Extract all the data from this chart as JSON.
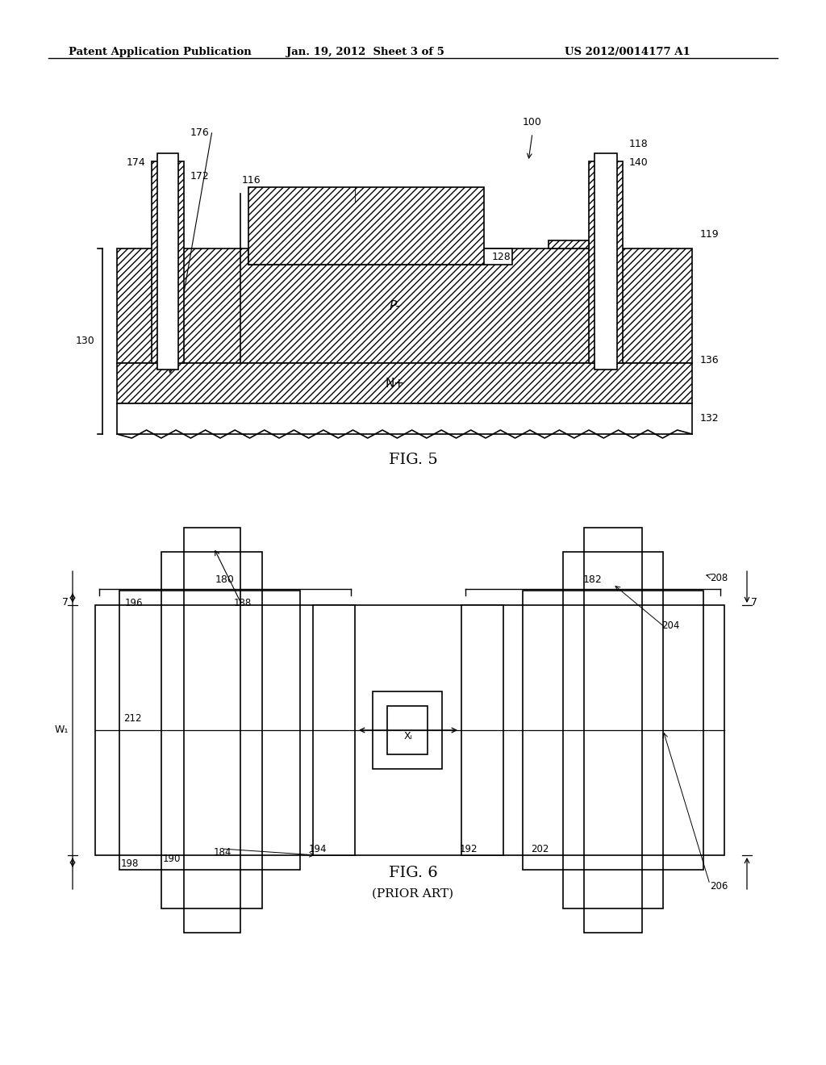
{
  "bg_color": "#ffffff",
  "header_text": "Patent Application Publication",
  "header_date": "Jan. 19, 2012  Sheet 3 of 5",
  "header_patent": "US 2012/0014177 A1",
  "fig5_label": "FIG. 5",
  "fig6_label": "FIG. 6",
  "fig6_sublabel": "(PRIOR ART)",
  "line_color": "#000000",
  "hatch_color": "#000000"
}
